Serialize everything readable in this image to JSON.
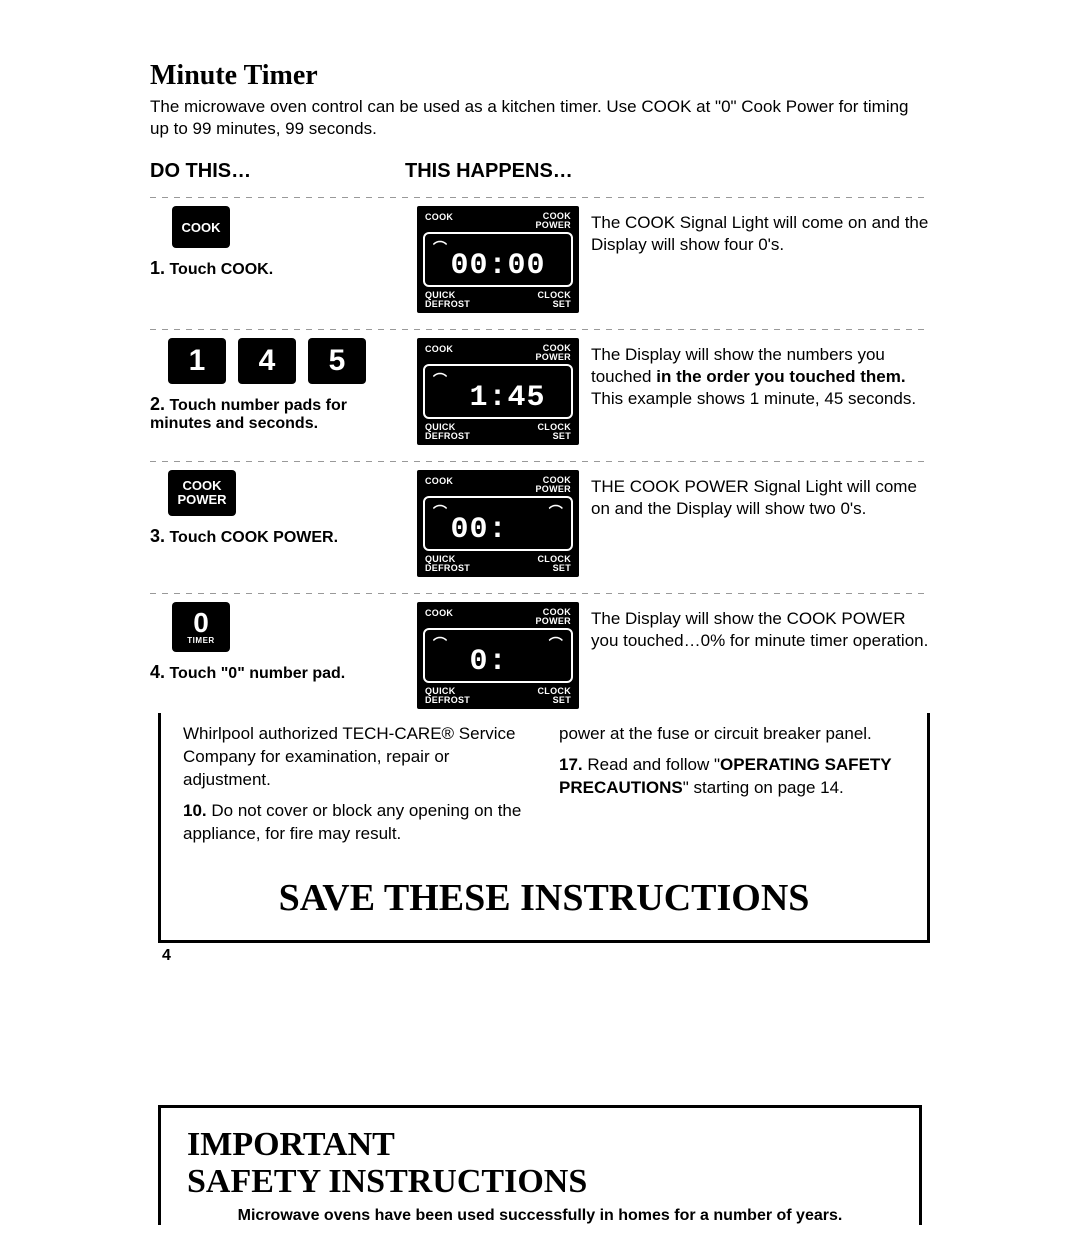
{
  "title": "Minute Timer",
  "intro": "The microwave oven control can be used as a kitchen timer. Use COOK at \"0\" Cook Power for timing up to 99 minutes, 99 seconds.",
  "headers": {
    "do": "DO THIS…",
    "happens": "THIS HAPPENS…"
  },
  "display_labels": {
    "cook": "COOK",
    "cook_power": "COOK\nPOWER",
    "quick_defrost": "QUICK\nDEFROST",
    "clock_set": "CLOCK\nSET"
  },
  "steps": [
    {
      "button_type": "cook",
      "button_text": "COOK",
      "caption_num": "1.",
      "caption": "Touch COOK.",
      "display": {
        "ind_left": "⌒",
        "ind_right": "",
        "digits": "00:00"
      },
      "result_pre": "The COOK Signal Light will come on and the Display will show four 0's.",
      "result_bold": "",
      "result_post": ""
    },
    {
      "button_type": "nums",
      "nums": [
        "1",
        "4",
        "5"
      ],
      "caption_num": "2.",
      "caption": "Touch number pads for minutes and seconds.",
      "display": {
        "ind_left": "⌒",
        "ind_right": "",
        "digits": " 1:45"
      },
      "result_pre": "The Display will show the numbers you touched ",
      "result_bold": "in the order you touched them.",
      "result_post": " This example shows 1 minute, 45 seconds."
    },
    {
      "button_type": "cook_power",
      "button_text_l1": "COOK",
      "button_text_l2": "POWER",
      "caption_num": "3.",
      "caption": "Touch COOK POWER.",
      "display": {
        "ind_left": "⌒",
        "ind_right": "⌒",
        "digits": "00:  "
      },
      "result_pre": "THE COOK POWER Signal Light will come on and the Display will show two 0's.",
      "result_bold": "",
      "result_post": ""
    },
    {
      "button_type": "zero",
      "button_text": "0",
      "button_sub": "TIMER",
      "caption_num": "4.",
      "caption": "Touch \"0\" number pad.",
      "display": {
        "ind_left": "⌒",
        "ind_right": "⌒",
        "digits": " 0:  "
      },
      "result_pre": "The Display will show the COOK POWER you touched…0% for minute timer operation.",
      "result_bold": "",
      "result_post": ""
    }
  ],
  "fragment": {
    "left_partial": "Whirlpool authorized TECH-CARE® Service Company for examination, repair or adjustment.",
    "left_10_num": "10.",
    "left_10": " Do not cover or block any opening on the appliance, for fire may result.",
    "right_partial": "power at the fuse or circuit breaker panel.",
    "right_17_num": "17.",
    "right_17_pre": " Read and follow \"",
    "right_17_bold": "OPERATING SAFETY PRECAUTIONS",
    "right_17_post": "\" starting on page 14.",
    "save": "SAVE THESE INSTRUCTIONS"
  },
  "page_number": "4",
  "lower": {
    "heading": "IMPORTANT\nSAFETY INSTRUCTIONS",
    "blurb": "Microwave ovens have been used successfully in homes for a number of years."
  }
}
